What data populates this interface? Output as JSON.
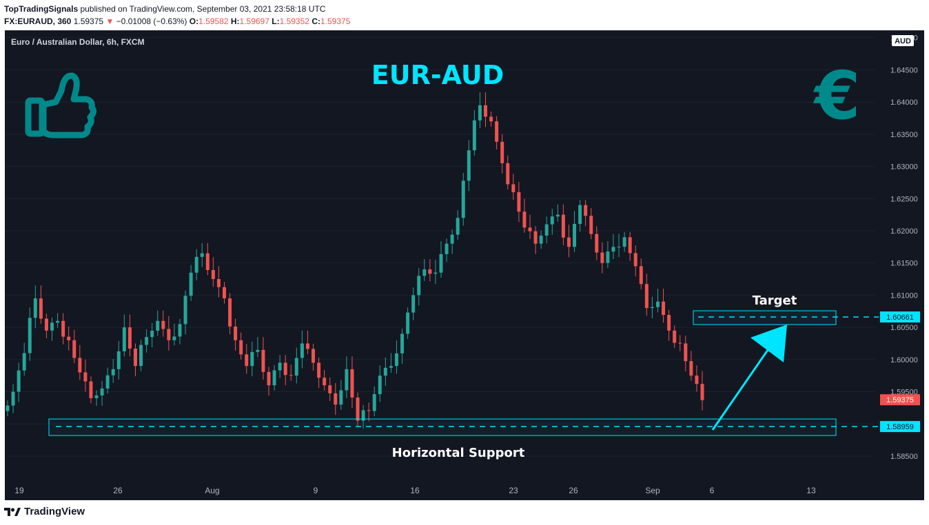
{
  "header": {
    "author": "TopTradingSignals",
    "published": " published on TradingView.com, September 03, 2021 23:58:18 UTC",
    "symbol": "FX:EURAUD, 360",
    "price": "1.59375",
    "change_arrow": "▼",
    "change": "−0.01008 (−0.63%)",
    "o_label": "O:",
    "o_value": "1.59582",
    "h_label": "H:",
    "h_value": "1.59697",
    "l_label": "L:",
    "l_value": "1.59352",
    "c_label": "C:",
    "c_value": "1.59375"
  },
  "chart": {
    "legend": "Euro / Australian Dollar, 6h, FXCM",
    "title": "EUR-AUD",
    "currency_badge": "AUD",
    "target_label": "Target",
    "support_label": "Horizontal Support",
    "current_price_tag": "1.59375",
    "target_price_tag": "1.60661",
    "support_price_tag": "1.58959",
    "colors": {
      "up": "#26a69a",
      "down": "#ef5350",
      "accent": "#00e5ff",
      "icon": "#00898a",
      "bg": "#131722"
    }
  },
  "chart_data": {
    "type": "candlestick",
    "y_ticks": [
      "1.65000",
      "1.64500",
      "1.64000",
      "1.63500",
      "1.63000",
      "1.62500",
      "1.62000",
      "1.61500",
      "1.61000",
      "1.60500",
      "1.60000",
      "1.59500",
      "1.59000",
      "1.58500"
    ],
    "ylim": [
      1.5835,
      1.6505
    ],
    "x_ticks": [
      "19",
      "26",
      "Aug",
      "9",
      "16",
      "23",
      "26",
      "Sep",
      "6",
      "13"
    ],
    "close_series": [
      1.595,
      1.601,
      1.6095,
      1.6045,
      1.606,
      1.603,
      1.598,
      1.594,
      1.5955,
      1.5985,
      1.605,
      1.599,
      1.6035,
      1.606,
      1.603,
      1.6055,
      1.6135,
      1.6165,
      1.6125,
      1.6095,
      1.603,
      1.599,
      1.6015,
      1.596,
      1.5995,
      1.5975,
      1.6025,
      1.5995,
      1.596,
      1.593,
      1.5985,
      1.5905,
      1.592,
      1.5975,
      1.599,
      1.604,
      1.61,
      1.614,
      1.6135,
      1.618,
      1.622,
      1.6325,
      1.6395,
      1.637,
      1.6305,
      1.626,
      1.6205,
      1.618,
      1.621,
      1.6225,
      1.6175,
      1.624,
      1.6195,
      1.615,
      1.6175,
      1.619,
      1.6145,
      1.608,
      1.609,
      1.6045,
      1.6025,
      1.5975,
      1.5937
    ],
    "target": 1.60661,
    "support": 1.58959,
    "current": 1.59375
  }
}
